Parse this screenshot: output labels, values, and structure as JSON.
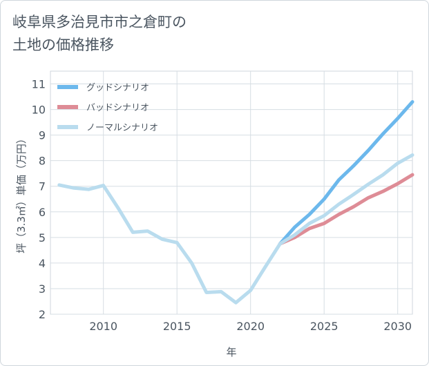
{
  "title_lines": [
    "岐阜県多治見市市之倉町の",
    "土地の価格推移"
  ],
  "chart_data": {
    "type": "line",
    "title": "岐阜県多治見市市之倉町の土地の価格推移",
    "xlabel": "年",
    "ylabel": "坪（3.3㎡）単価（万円）",
    "xlim": [
      2006.4,
      2031
    ],
    "ylim": [
      2,
      11.5
    ],
    "xticks": [
      2010,
      2015,
      2020,
      2025,
      2030
    ],
    "yticks": [
      2,
      3,
      4,
      5,
      6,
      7,
      8,
      9,
      10,
      11
    ],
    "grid": true,
    "legend_position": "top-left",
    "series": [
      {
        "name": "グッドシナリオ",
        "color": "#6cb8ec",
        "x": [
          2022,
          2023,
          2024,
          2025,
          2026,
          2027,
          2028,
          2029,
          2030,
          2031
        ],
        "y": [
          4.75,
          5.4,
          5.9,
          6.5,
          7.25,
          7.8,
          8.4,
          9.05,
          9.65,
          10.3
        ]
      },
      {
        "name": "バッドシナリオ",
        "color": "#de8c96",
        "x": [
          2022,
          2023,
          2024,
          2025,
          2026,
          2027,
          2028,
          2029,
          2030,
          2031
        ],
        "y": [
          4.75,
          5.0,
          5.35,
          5.55,
          5.9,
          6.2,
          6.55,
          6.8,
          7.1,
          7.45
        ]
      },
      {
        "name": "ノーマルシナリオ",
        "color": "#b9dcee",
        "x": [
          2007,
          2008,
          2009,
          2010,
          2011,
          2012,
          2013,
          2014,
          2015,
          2016,
          2017,
          2018,
          2019,
          2020,
          2021,
          2022,
          2023,
          2024,
          2025,
          2026,
          2027,
          2028,
          2029,
          2030,
          2031
        ],
        "y": [
          7.05,
          6.93,
          6.88,
          7.03,
          6.15,
          5.2,
          5.25,
          4.93,
          4.8,
          4.0,
          2.85,
          2.88,
          2.45,
          2.93,
          3.85,
          4.75,
          5.1,
          5.55,
          5.85,
          6.3,
          6.68,
          7.08,
          7.45,
          7.9,
          8.22
        ]
      }
    ]
  }
}
